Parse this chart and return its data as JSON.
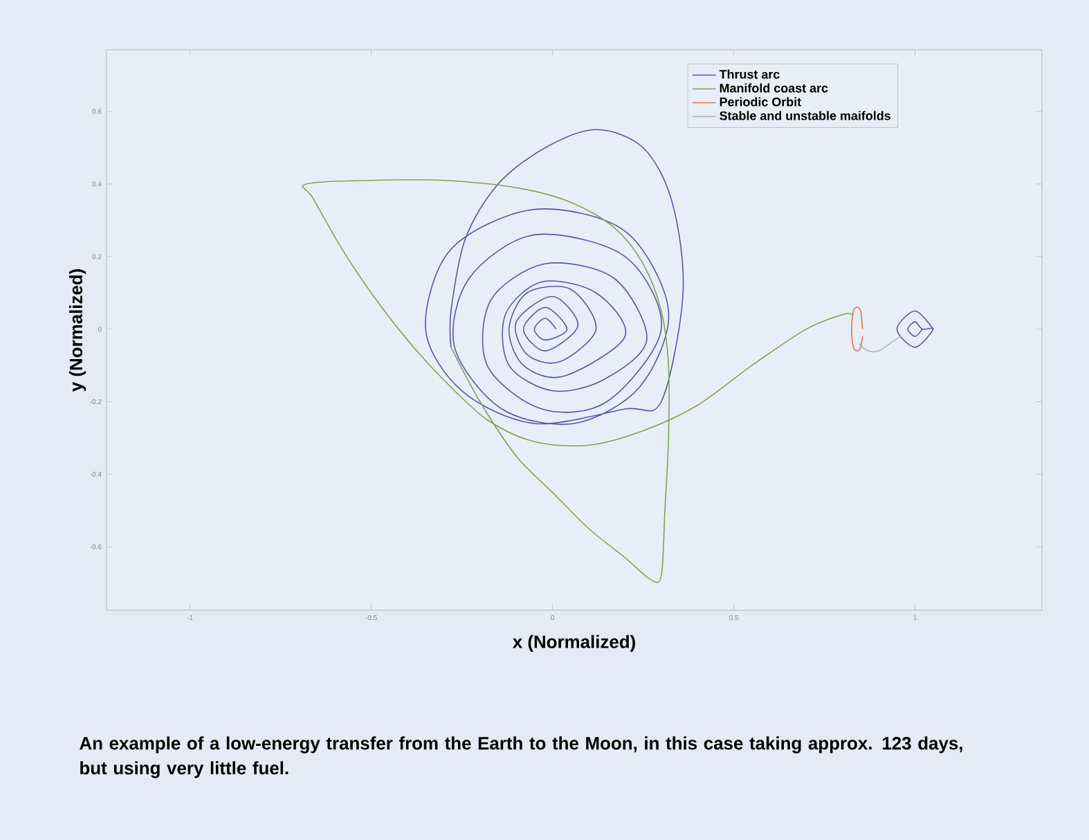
{
  "chart_data": {
    "type": "line",
    "xlabel": "x (Normalized)",
    "ylabel": "y (Normalized)",
    "xlim": [
      -1.23,
      1.35
    ],
    "ylim": [
      -0.775,
      0.77
    ],
    "xticks": [
      -1,
      -0.5,
      0,
      0.5,
      1
    ],
    "yticks": [
      -0.6,
      -0.4,
      -0.2,
      0,
      0.2,
      0.4,
      0.6
    ],
    "legend": "top right",
    "grid": false,
    "line_style": "solid",
    "marker": "none",
    "annotations": [
      "An example of a low-energy transfer from the Earth to the Moon, in this case taking approx. 123 days, but using very little fuel."
    ],
    "series": [
      {
        "name": "Thrust arc",
        "color": "#5058b0",
        "x": [
          0.01,
          -0.02,
          -0.05,
          -0.02,
          0.04,
          -0.02,
          -0.08,
          -0.02,
          0.07,
          0.0,
          -0.1,
          -0.07,
          0.02,
          0.12,
          0.05,
          -0.07,
          -0.12,
          -0.08,
          0.03,
          0.2,
          0.12,
          -0.03,
          -0.13,
          -0.12,
          0.0,
          0.14,
          0.26,
          0.17,
          -0.02,
          -0.17,
          -0.18,
          -0.03,
          0.15,
          0.3,
          0.2,
          -0.05,
          -0.23,
          -0.27,
          -0.14,
          0.06,
          0.24,
          0.32,
          0.2,
          -0.05,
          -0.28,
          -0.35,
          -0.25,
          -0.05,
          0.2,
          0.3,
          0.36,
          0.33,
          0.25,
          0.12,
          -0.02,
          -0.15,
          -0.24,
          -0.28,
          -0.28,
          null,
          1.05,
          1.0,
          0.95,
          1.0,
          1.05,
          1.02,
          1.0,
          0.98,
          1.0,
          1.02
        ],
        "values": [
          0,
          0.03,
          0,
          -0.03,
          0,
          0.06,
          0,
          -0.06,
          0.01,
          0.09,
          0.02,
          -0.07,
          -0.09,
          0.0,
          0.11,
          0.1,
          0,
          -0.1,
          -0.13,
          -0.02,
          0.1,
          0.13,
          0.04,
          -0.1,
          -0.17,
          -0.14,
          -0.03,
          0.14,
          0.18,
          0.08,
          -0.1,
          -0.22,
          -0.2,
          0.0,
          0.2,
          0.26,
          0.14,
          -0.05,
          -0.22,
          -0.26,
          -0.16,
          0.05,
          0.27,
          0.33,
          0.22,
          0.0,
          -0.17,
          -0.26,
          -0.22,
          -0.2,
          0.1,
          0.35,
          0.5,
          0.55,
          0.5,
          0.4,
          0.25,
          0.05,
          -0.05,
          null,
          0,
          0.05,
          0,
          -0.05,
          0,
          0,
          0.02,
          0,
          -0.02,
          0
        ]
      },
      {
        "name": "Manifold coast arc",
        "color": "#7aa84a",
        "x": [
          -0.28,
          -0.2,
          -0.1,
          0.0,
          0.1,
          0.2,
          0.27,
          0.3,
          0.31,
          0.32,
          0.32,
          0.3,
          0.25,
          0.17,
          0.05,
          -0.1,
          -0.3,
          -0.5,
          -0.68,
          -0.66,
          -0.58,
          -0.5,
          -0.4,
          -0.3,
          -0.18,
          -0.05,
          0.1,
          0.25,
          0.4,
          0.55,
          0.7,
          0.8,
          0.83
        ],
        "values": [
          -0.05,
          -0.2,
          -0.35,
          -0.45,
          -0.55,
          -0.63,
          -0.69,
          -0.68,
          -0.5,
          -0.3,
          -0.1,
          0.05,
          0.18,
          0.28,
          0.35,
          0.39,
          0.41,
          0.41,
          0.4,
          0.36,
          0.22,
          0.1,
          -0.03,
          -0.14,
          -0.25,
          -0.31,
          -0.32,
          -0.28,
          -0.21,
          -0.1,
          0.0,
          0.04,
          0.04
        ]
      },
      {
        "name": "Periodic Orbit",
        "color": "#e07840",
        "x": [
          0.855,
          0.85,
          0.84,
          0.83,
          0.825,
          0.83,
          0.84,
          0.85,
          0.855
        ],
        "values": [
          0,
          0.05,
          0.06,
          0.05,
          0,
          -0.05,
          -0.06,
          -0.05,
          -0.02
        ]
      },
      {
        "name": "Stable and unstable maifolds",
        "color": "#a8b4c8",
        "x": [
          0.845,
          0.87,
          0.9,
          0.93,
          0.96
        ],
        "values": [
          -0.04,
          -0.06,
          -0.06,
          -0.04,
          -0.02
        ]
      }
    ]
  }
}
